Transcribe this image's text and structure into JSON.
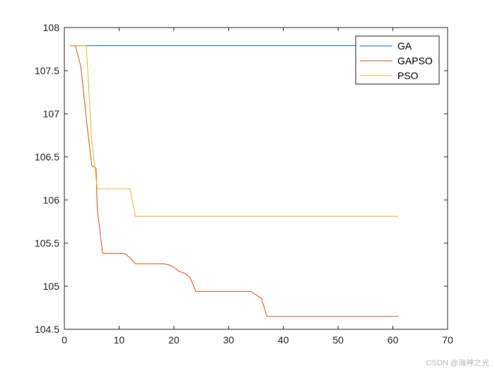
{
  "chart_data": {
    "type": "line",
    "title": "",
    "xlabel": "",
    "ylabel": "",
    "xlim": [
      0,
      70
    ],
    "ylim": [
      104.5,
      108
    ],
    "xticks": [
      0,
      10,
      20,
      30,
      40,
      50,
      60,
      70
    ],
    "yticks": [
      104.5,
      105,
      105.5,
      106,
      106.5,
      107,
      107.5,
      108
    ],
    "xtick_labels": [
      "0",
      "10",
      "20",
      "30",
      "40",
      "50",
      "60",
      "70"
    ],
    "ytick_labels": [
      "104.5",
      "105",
      "105.5",
      "106",
      "106.5",
      "107",
      "107.5",
      "108"
    ],
    "grid": false,
    "legend_position": "top-right",
    "series": [
      {
        "name": "GA",
        "color": "#0072BD",
        "points": [
          [
            1,
            107.79
          ],
          [
            61,
            107.79
          ]
        ]
      },
      {
        "name": "GAPSO",
        "color": "#D95319",
        "points": [
          [
            1,
            107.79
          ],
          [
            2,
            107.79
          ],
          [
            3,
            107.55
          ],
          [
            4,
            106.95
          ],
          [
            5,
            106.4
          ],
          [
            5.8,
            106.37
          ],
          [
            6,
            105.9
          ],
          [
            7,
            105.38
          ],
          [
            11,
            105.38
          ],
          [
            12,
            105.33
          ],
          [
            13,
            105.26
          ],
          [
            18,
            105.26
          ],
          [
            19,
            105.25
          ],
          [
            20,
            105.22
          ],
          [
            21,
            105.17
          ],
          [
            22,
            105.15
          ],
          [
            23,
            105.1
          ],
          [
            24,
            104.94
          ],
          [
            25,
            104.94
          ],
          [
            34,
            104.94
          ],
          [
            36,
            104.86
          ],
          [
            37,
            104.65
          ],
          [
            61,
            104.65
          ]
        ]
      },
      {
        "name": "PSO",
        "color": "#EDB120",
        "points": [
          [
            1,
            107.79
          ],
          [
            4,
            107.79
          ],
          [
            5,
            106.7
          ],
          [
            6,
            106.13
          ],
          [
            12,
            106.13
          ],
          [
            13,
            105.81
          ],
          [
            61,
            105.81
          ]
        ]
      }
    ]
  },
  "watermark": "CSDN @海神之光"
}
